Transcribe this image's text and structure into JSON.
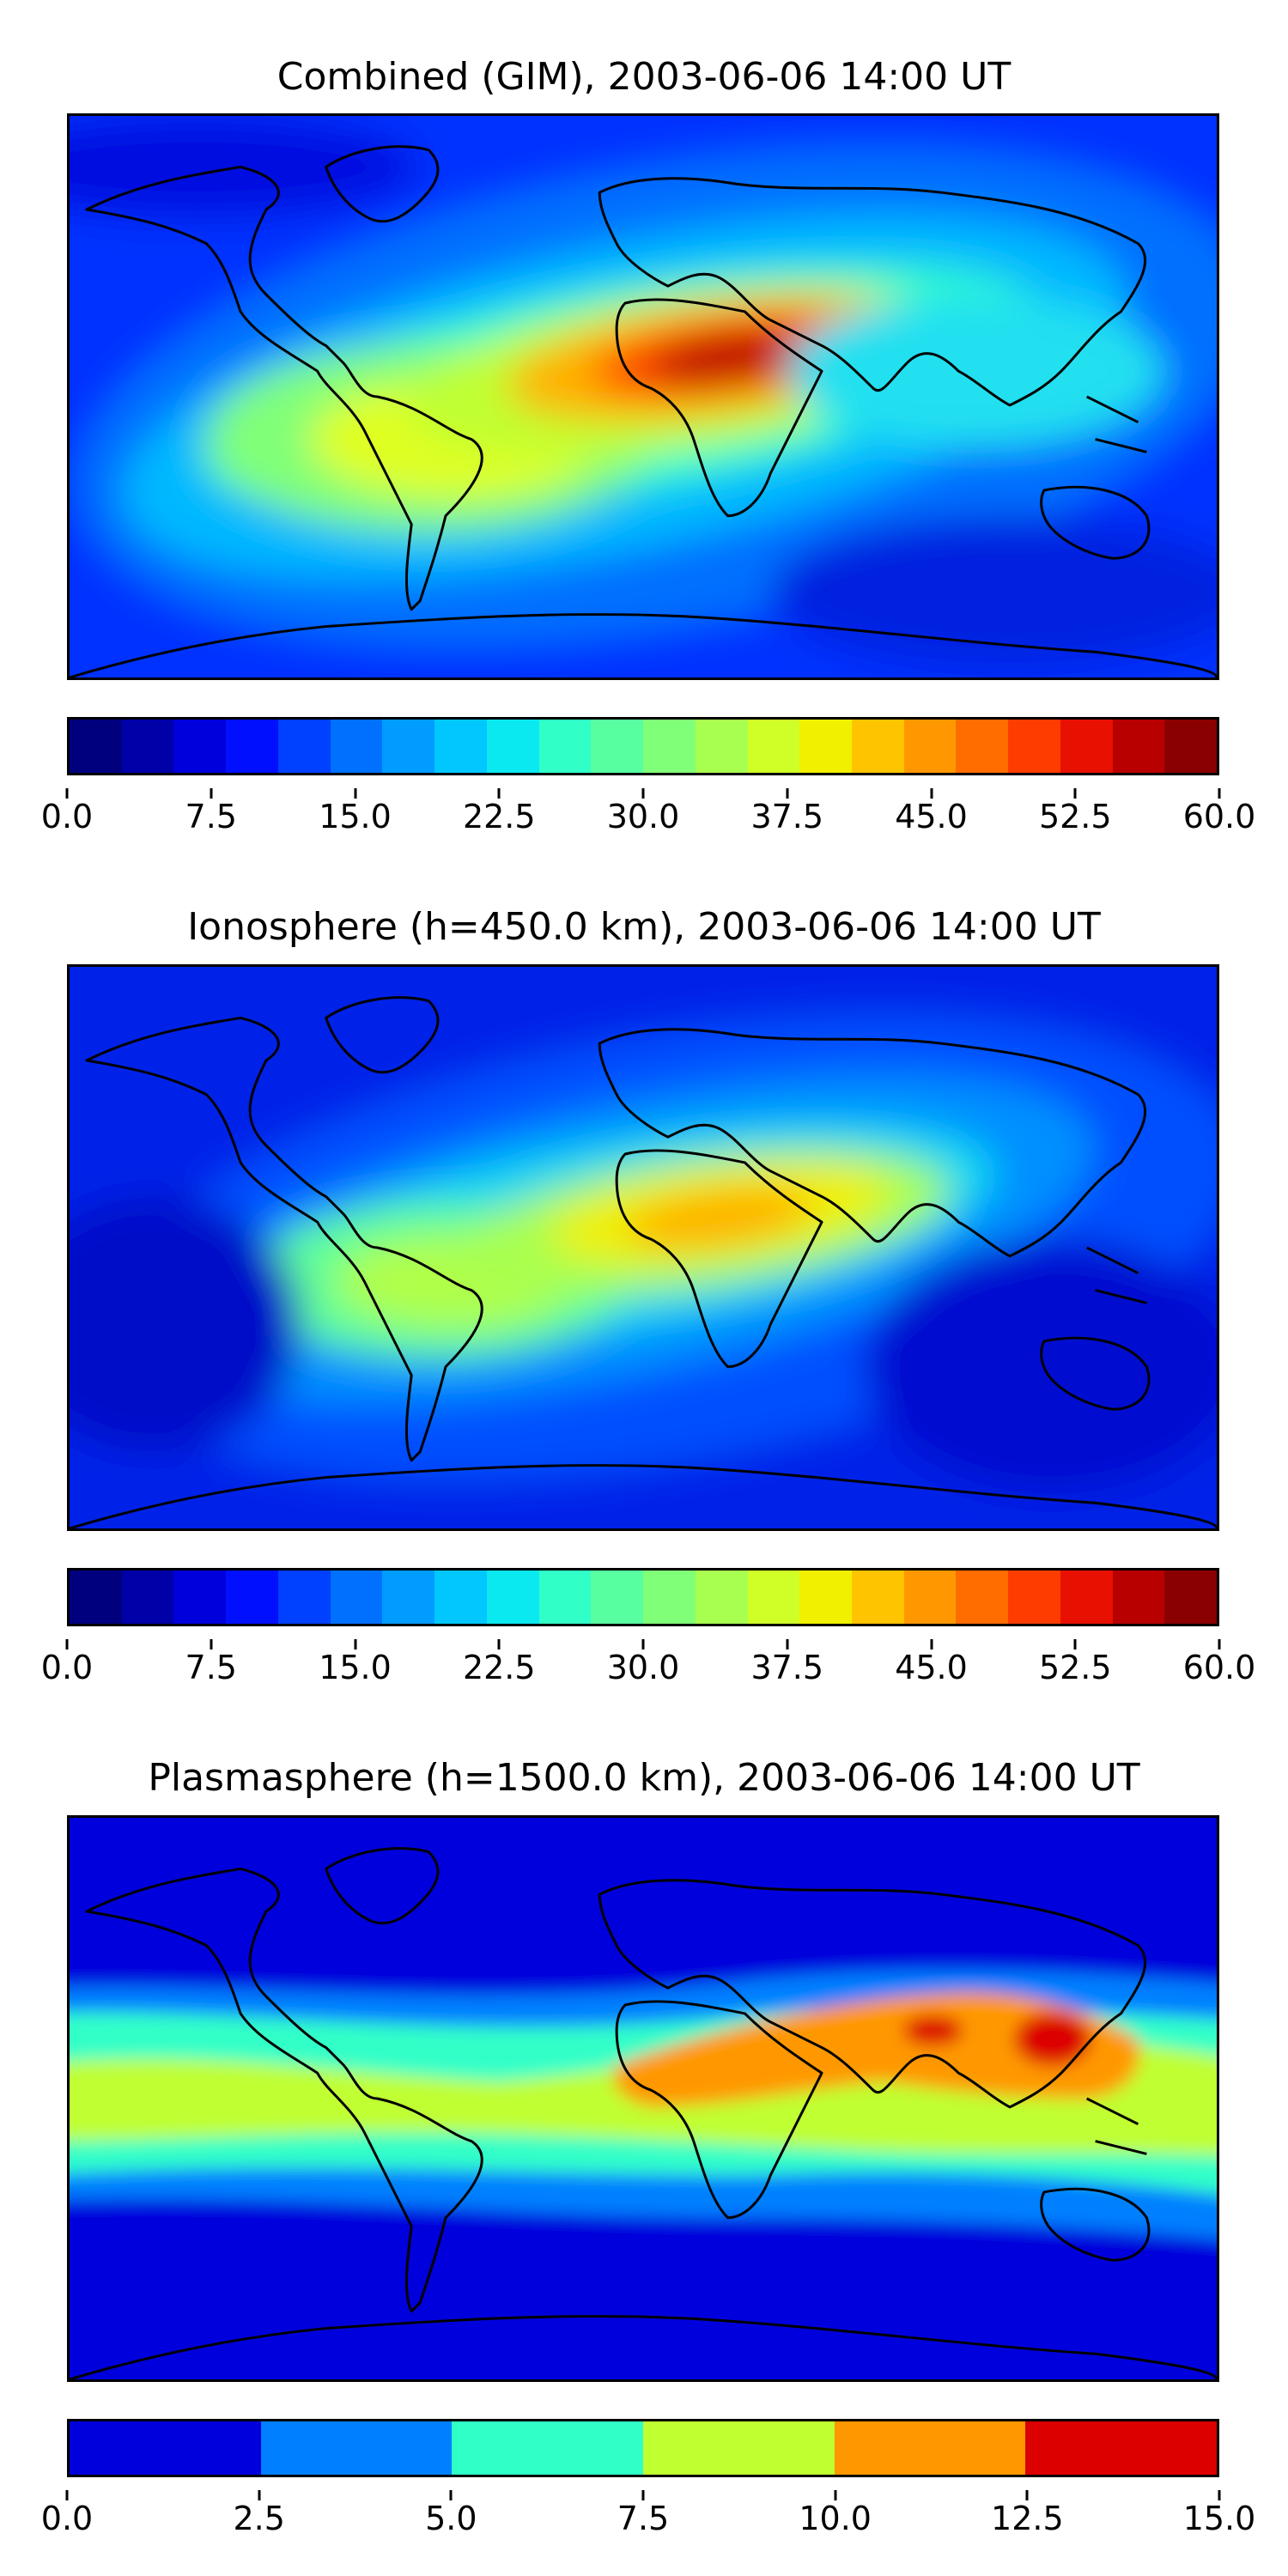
{
  "panels": [
    {
      "title": "Combined (GIM), 2003-06-06 14:00 UT",
      "colorbar": {
        "ticks": [
          "0.0",
          "7.5",
          "15.0",
          "22.5",
          "30.0",
          "37.5",
          "45.0",
          "52.5",
          "60.0"
        ],
        "colors": [
          "#00007f",
          "#0000a8",
          "#0000dc",
          "#0010ff",
          "#0040ff",
          "#0070ff",
          "#009cff",
          "#00c8ff",
          "#0ae8f0",
          "#30ffc8",
          "#58ffa0",
          "#80ff78",
          "#a8ff50",
          "#d0ff28",
          "#f0f000",
          "#ffc400",
          "#ff9800",
          "#ff6c00",
          "#ff3c00",
          "#e81000",
          "#b80000",
          "#8a0000"
        ]
      }
    },
    {
      "title": "Ionosphere  (h=450.0 km), 2003-06-06 14:00 UT",
      "colorbar": {
        "ticks": [
          "0.0",
          "7.5",
          "15.0",
          "22.5",
          "30.0",
          "37.5",
          "45.0",
          "52.5",
          "60.0"
        ],
        "colors": [
          "#00007f",
          "#0000a8",
          "#0000dc",
          "#0010ff",
          "#0040ff",
          "#0070ff",
          "#009cff",
          "#00c8ff",
          "#0ae8f0",
          "#30ffc8",
          "#58ffa0",
          "#80ff78",
          "#a8ff50",
          "#d0ff28",
          "#f0f000",
          "#ffc400",
          "#ff9800",
          "#ff6c00",
          "#ff3c00",
          "#e81000",
          "#b80000",
          "#8a0000"
        ]
      }
    },
    {
      "title": "Plasmasphere (h=1500.0 km), 2003-06-06 14:00 UT",
      "colorbar": {
        "ticks": [
          "0.0",
          "2.5",
          "5.0",
          "7.5",
          "10.0",
          "12.5",
          "15.0"
        ],
        "colors": [
          "#0000dc",
          "#0080ff",
          "#30ffc8",
          "#c0ff30",
          "#ff9800",
          "#dc0000"
        ]
      }
    }
  ]
}
